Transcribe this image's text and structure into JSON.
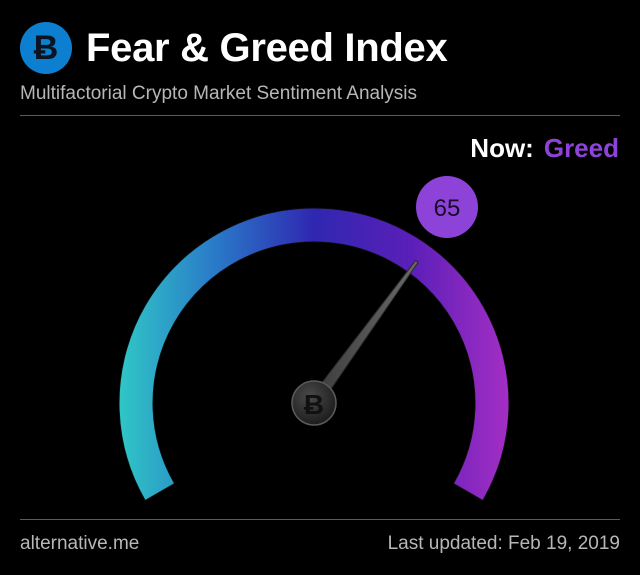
{
  "header": {
    "logo_icon": "bitcoin-icon",
    "logo_glyph": "Ƀ",
    "title": "Fear & Greed Index",
    "subtitle": "Multifactorial Crypto Market Sentiment Analysis"
  },
  "now": {
    "label": "Now:",
    "classification": "Greed"
  },
  "gauge": {
    "value": 65,
    "min": 0,
    "max": 100,
    "value_label": "65",
    "hub_icon": "bitcoin-icon",
    "hub_glyph": "Ƀ"
  },
  "footer": {
    "source": "alternative.me",
    "last_updated": "Last updated: Feb 19, 2019"
  },
  "colors": {
    "background": "#000000",
    "accent": "#8d43d8",
    "gauge_start": "#2fc6c6",
    "gauge_mid": "#3323a8",
    "gauge_end": "#a32ec4",
    "badge": "#8d43d8",
    "logo": "#0d7fd0"
  }
}
